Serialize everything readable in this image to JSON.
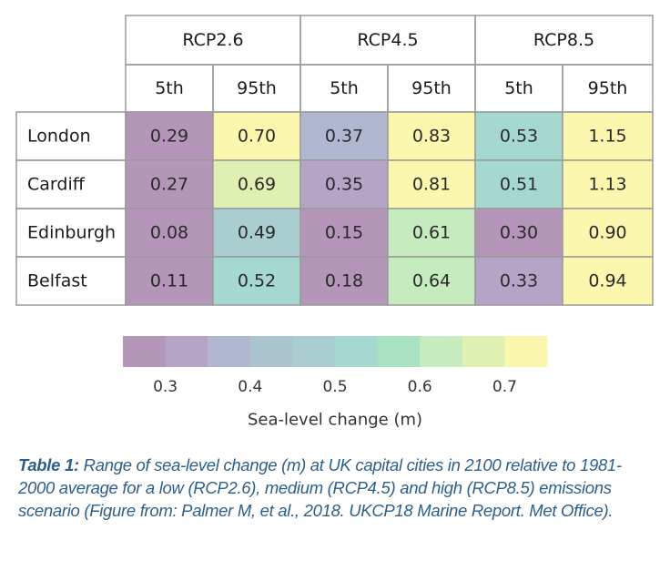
{
  "chart_data": {
    "type": "heatmap",
    "scenarios": [
      "RCP2.6",
      "RCP4.5",
      "RCP8.5"
    ],
    "percentiles": [
      "5th",
      "95th"
    ],
    "rows": [
      {
        "city": "London",
        "values": [
          "0.29",
          "0.70",
          "0.37",
          "0.83",
          "0.53",
          "1.15"
        ]
      },
      {
        "city": "Cardiff",
        "values": [
          "0.27",
          "0.69",
          "0.35",
          "0.81",
          "0.51",
          "1.13"
        ]
      },
      {
        "city": "Edinburgh",
        "values": [
          "0.08",
          "0.49",
          "0.15",
          "0.61",
          "0.30",
          "0.90"
        ]
      },
      {
        "city": "Belfast",
        "values": [
          "0.11",
          "0.52",
          "0.18",
          "0.64",
          "0.33",
          "0.94"
        ]
      }
    ],
    "colorbar": {
      "label": "Sea-level change (m)",
      "ticks": [
        "0.3",
        "0.4",
        "0.5",
        "0.6",
        "0.7"
      ],
      "range": [
        0.25,
        0.75
      ],
      "colors": [
        "#b396b8",
        "#b5a4c6",
        "#b0b7cf",
        "#abc4cf",
        "#aacdd0",
        "#a5d9d0",
        "#a9e3c6",
        "#c5ebbf",
        "#dff0b2",
        "#fbf7ae"
      ]
    }
  },
  "caption": {
    "label": "Table 1:",
    "text": " Range of sea-level change (m) at UK capital cities in 2100 relative to 1981-2000 average for a low (RCP2.6), medium (RCP4.5) and high (RCP8.5) emissions scenario (Figure from: Palmer M, et al., 2018. UKCP18 Marine Report. Met Office)."
  }
}
